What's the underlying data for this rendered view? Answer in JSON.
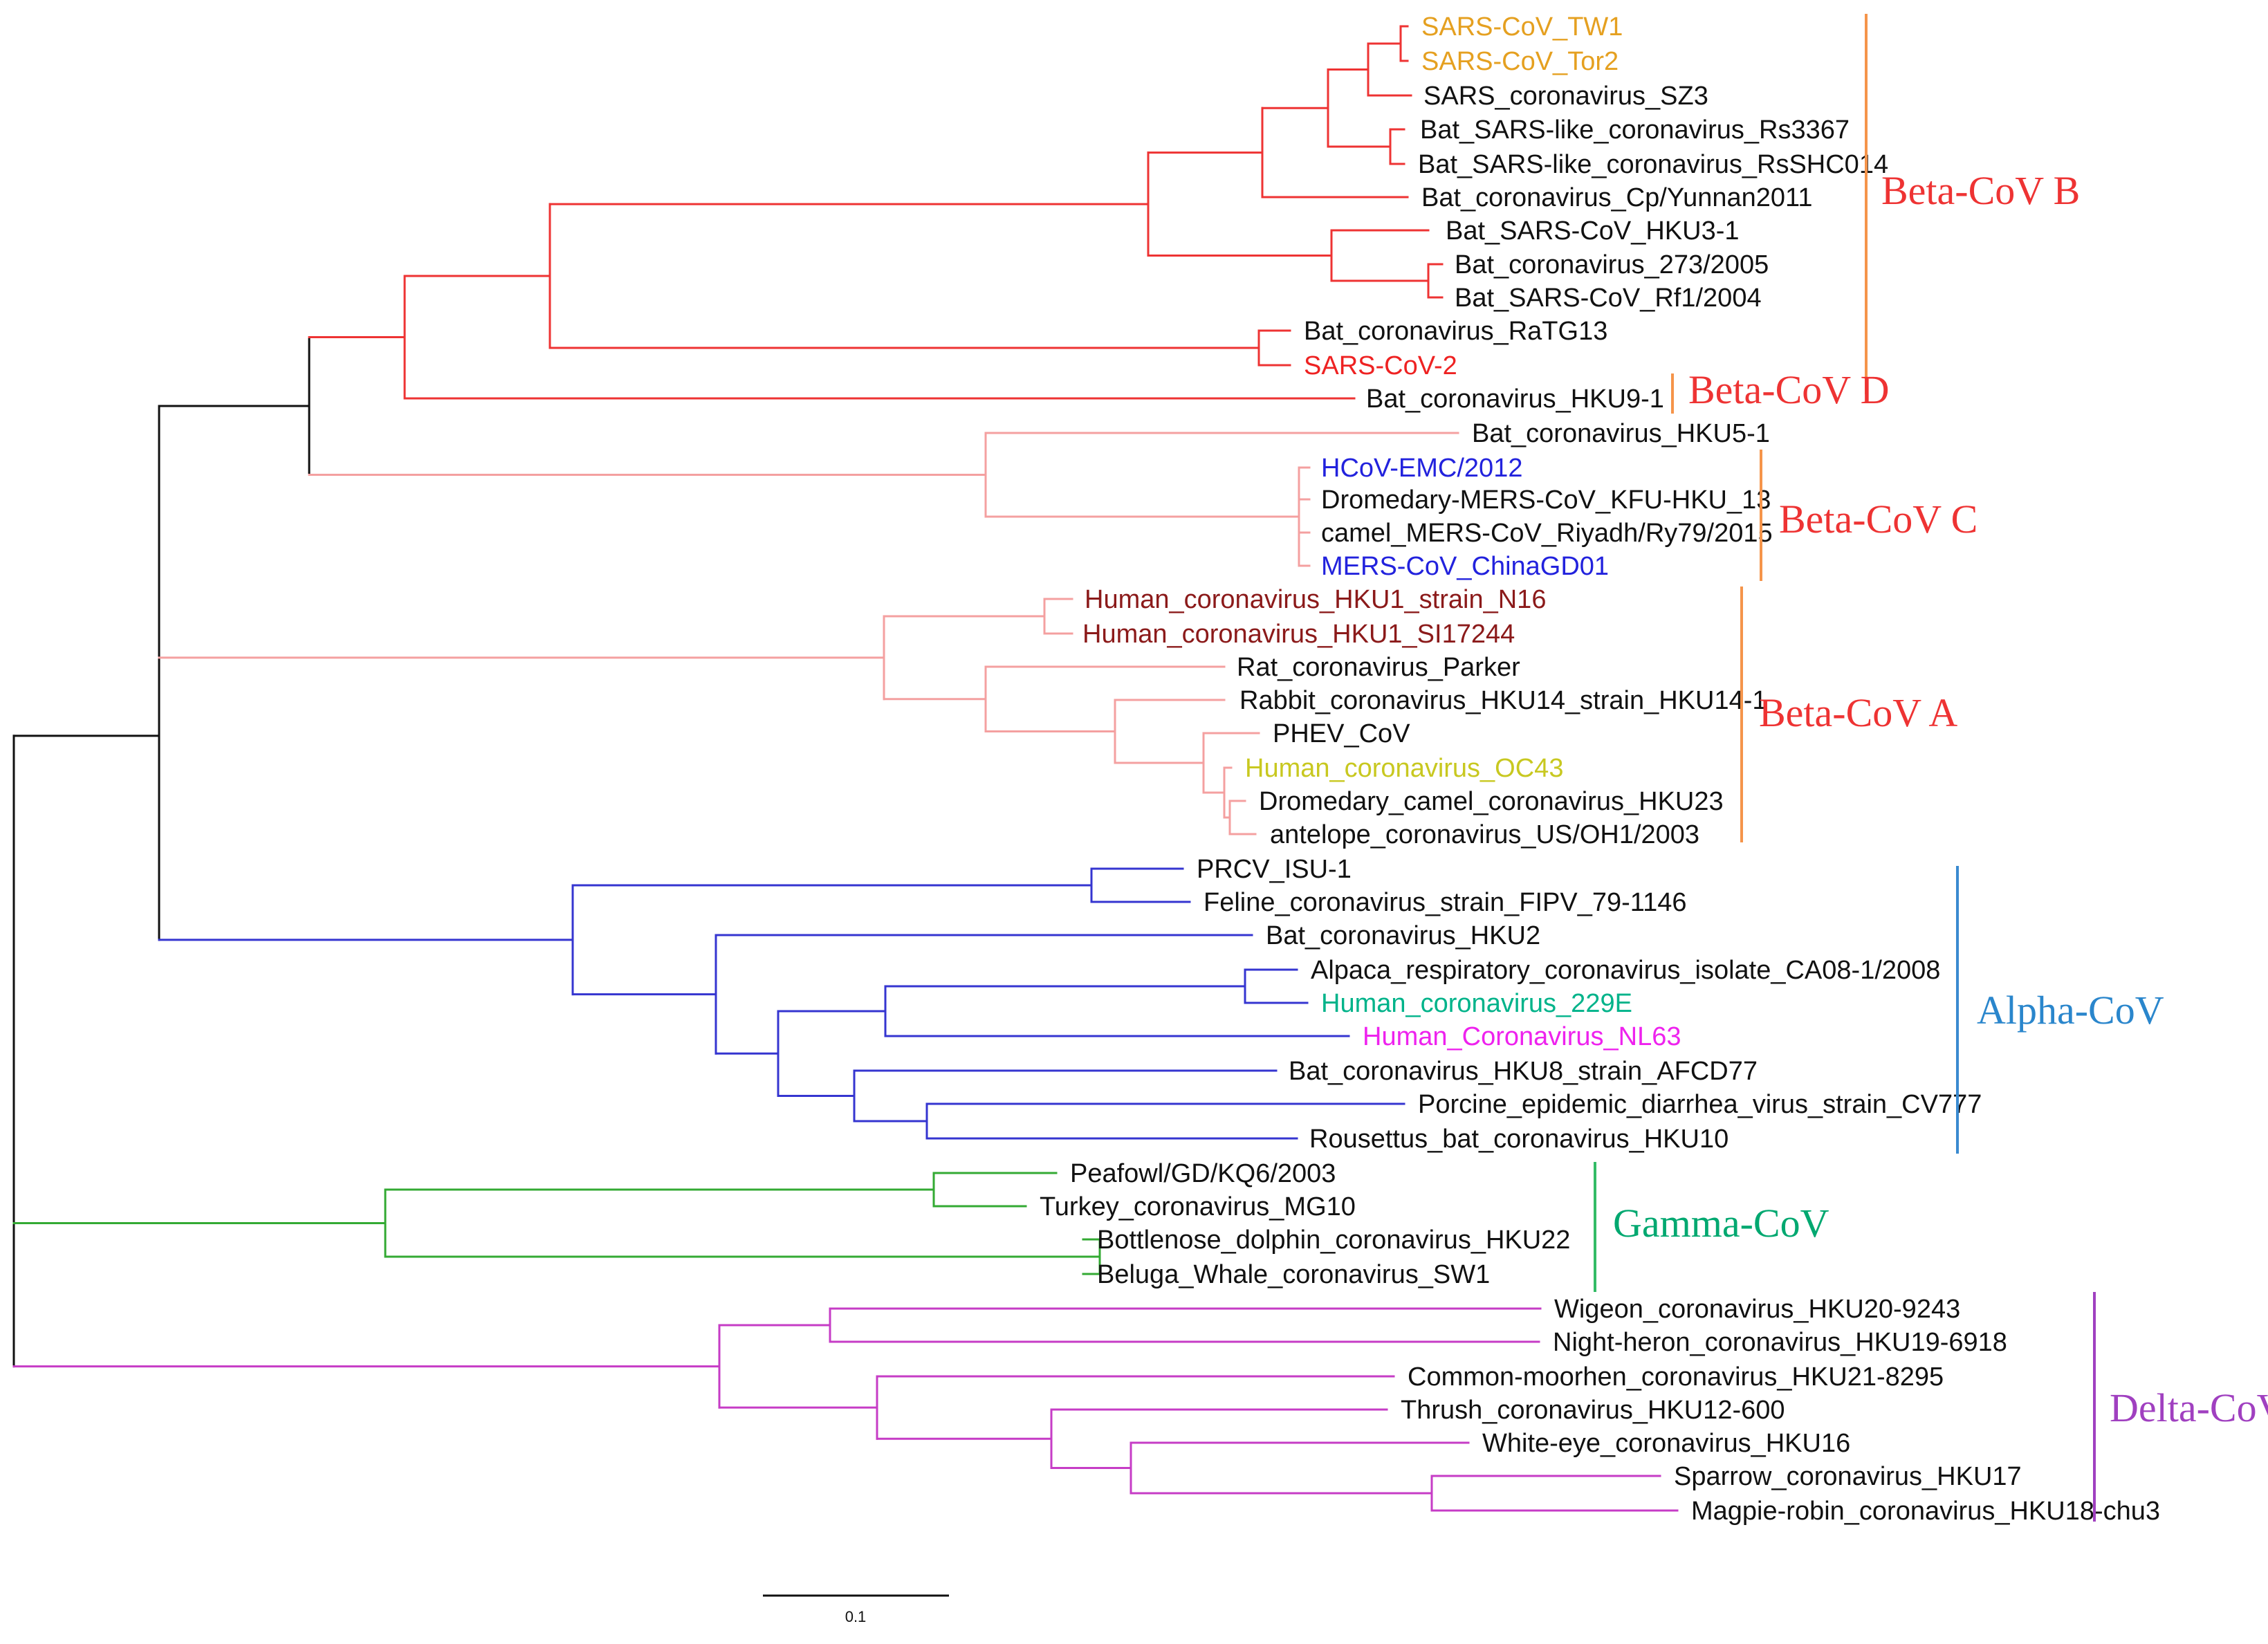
{
  "colors": {
    "beta_b": "#ee3333",
    "beta_c": "#f4a0a0",
    "beta_a": "#f4a0a0",
    "alpha": "#3535d0",
    "gamma": "#33aa33",
    "delta": "#c63cc6",
    "black": "#111111",
    "bracket": "#f5944a",
    "alpha_bracket": "#3a8ad0",
    "gamma_bracket": "#33bb66",
    "delta_bracket": "#a040c0"
  },
  "leaves": [
    {
      "label": "SARS-CoV_TW1",
      "color": "#e5a020"
    },
    {
      "label": "SARS-CoV_Tor2",
      "color": "#e5a020"
    },
    {
      "label": "SARS_coronavirus_SZ3",
      "color": "#111111"
    },
    {
      "label": "Bat_SARS-like_coronavirus_Rs3367",
      "color": "#111111"
    },
    {
      "label": "Bat_SARS-like_coronavirus_RsSHC014",
      "color": "#111111"
    },
    {
      "label": "Bat_coronavirus_Cp/Yunnan2011",
      "color": "#111111"
    },
    {
      "label": "Bat_SARS-CoV_HKU3-1",
      "color": "#111111"
    },
    {
      "label": "Bat_coronavirus_273/2005",
      "color": "#111111"
    },
    {
      "label": "Bat_SARS-CoV_Rf1/2004",
      "color": "#111111"
    },
    {
      "label": "Bat_coronavirus_RaTG13",
      "color": "#111111"
    },
    {
      "label": "SARS-CoV-2",
      "color": "#ee2222"
    },
    {
      "label": "Bat_coronavirus_HKU9-1",
      "color": "#111111"
    },
    {
      "label": "Bat_coronavirus_HKU5-1",
      "color": "#111111"
    },
    {
      "label": "HCoV-EMC/2012",
      "color": "#2222dd"
    },
    {
      "label": "Dromedary-MERS-CoV_KFU-HKU_13",
      "color": "#111111"
    },
    {
      "label": "camel_MERS-CoV_Riyadh/Ry79/2015",
      "color": "#111111"
    },
    {
      "label": "MERS-CoV_ChinaGD01",
      "color": "#2222dd"
    },
    {
      "label": "Human_coronavirus_HKU1_strain_N16",
      "color": "#8b1a1a"
    },
    {
      "label": "Human_coronavirus_HKU1_SI17244",
      "color": "#8b1a1a"
    },
    {
      "label": "Rat_coronavirus_Parker",
      "color": "#111111"
    },
    {
      "label": "Rabbit_coronavirus_HKU14_strain_HKU14-1",
      "color": "#111111"
    },
    {
      "label": "PHEV_CoV",
      "color": "#111111"
    },
    {
      "label": "Human_coronavirus_OC43",
      "color": "#c8c820"
    },
    {
      "label": "Dromedary_camel_coronavirus_HKU23",
      "color": "#111111"
    },
    {
      "label": "antelope_coronavirus_US/OH1/2003",
      "color": "#111111"
    },
    {
      "label": "PRCV_ISU-1",
      "color": "#111111"
    },
    {
      "label": "Feline_coronavirus_strain_FIPV_79-1146",
      "color": "#111111"
    },
    {
      "label": "Bat_coronavirus_HKU2",
      "color": "#111111"
    },
    {
      "label": "Alpaca_respiratory_coronavirus_isolate_CA08-1/2008",
      "color": "#111111"
    },
    {
      "label": "Human_coronavirus_229E",
      "color": "#00b38a"
    },
    {
      "label": "Human_Coronavirus_NL63",
      "color": "#ee22ee"
    },
    {
      "label": "Bat_coronavirus_HKU8_strain_AFCD77",
      "color": "#111111"
    },
    {
      "label": "Porcine_epidemic_diarrhea_virus_strain_CV777",
      "color": "#111111"
    },
    {
      "label": "Rousettus_bat_coronavirus_HKU10",
      "color": "#111111"
    },
    {
      "label": "Peafowl/GD/KQ6/2003",
      "color": "#111111"
    },
    {
      "label": "Turkey_coronavirus_MG10",
      "color": "#111111"
    },
    {
      "label": "Bottlenose_dolphin_coronavirus_HKU22",
      "color": "#111111"
    },
    {
      "label": "Beluga_Whale_coronavirus_SW1",
      "color": "#111111"
    },
    {
      "label": "Wigeon_coronavirus_HKU20-9243",
      "color": "#111111"
    },
    {
      "label": "Night-heron_coronavirus_HKU19-6918",
      "color": "#111111"
    },
    {
      "label": "Common-moorhen_coronavirus_HKU21-8295",
      "color": "#111111"
    },
    {
      "label": "Thrush_coronavirus_HKU12-600",
      "color": "#111111"
    },
    {
      "label": "White-eye_coronavirus_HKU16",
      "color": "#111111"
    },
    {
      "label": "Sparrow_coronavirus_HKU17",
      "color": "#111111"
    },
    {
      "label": "Magpie-robin_coronavirus_HKU18-chu3",
      "color": "#111111"
    }
  ],
  "clades": [
    {
      "label": "Beta-CoV B",
      "color": "#ee3333"
    },
    {
      "label": "Beta-CoV D",
      "color": "#ee3333"
    },
    {
      "label": "Beta-CoV C",
      "color": "#ee3333"
    },
    {
      "label": "Beta-CoV A",
      "color": "#ee3333"
    },
    {
      "label": "Alpha-CoV",
      "color": "#2a86cc"
    },
    {
      "label": "Gamma-CoV",
      "color": "#00a870"
    },
    {
      "label": "Delta-CoV",
      "color": "#a040c0"
    }
  ],
  "scale_bar": {
    "label": "0.1"
  }
}
